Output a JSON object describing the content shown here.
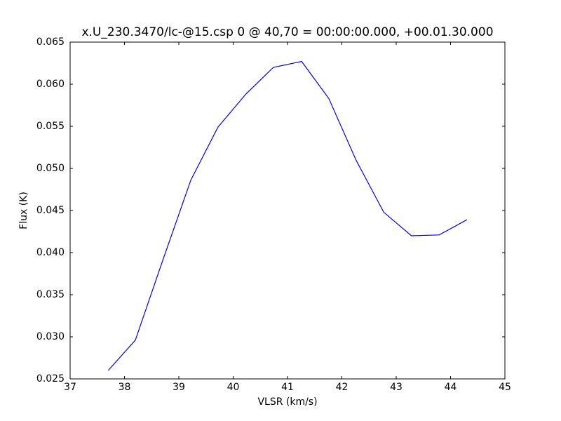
{
  "chart_data": {
    "type": "line",
    "title": "x.U_230.3470/lc-@15.csp 0 @ 40,70 = 00:00:00.000, +00.01.30.000",
    "x_label": "VLSR (km/s)",
    "y_label": "Flux (K)",
    "x": [
      37.7,
      38.2,
      38.7,
      39.22,
      39.72,
      40.23,
      40.74,
      41.26,
      41.76,
      42.26,
      42.77,
      43.28,
      43.79,
      44.3
    ],
    "series": [
      {
        "color": "#0000ff",
        "values": [
          0.026,
          0.0296,
          0.039,
          0.0486,
          0.0549,
          0.0588,
          0.062,
          0.0627,
          0.0583,
          0.051,
          0.0448,
          0.042,
          0.0421,
          0.0439
        ]
      }
    ],
    "xlim": [
      37,
      45
    ],
    "xticks": [
      37,
      38,
      39,
      40,
      41,
      42,
      43,
      44,
      45
    ],
    "ylim": [
      0.025,
      0.065
    ],
    "yticks": [
      0.025,
      {
        "value": 0.03,
        "label": "0.030"
      },
      0.035,
      {
        "value": 0.04,
        "label": "0.040"
      },
      0.045,
      {
        "value": 0.05,
        "label": "0.050"
      },
      0.055,
      {
        "value": 0.06,
        "label": "0.060"
      },
      0.065
    ],
    "grid": false
  }
}
